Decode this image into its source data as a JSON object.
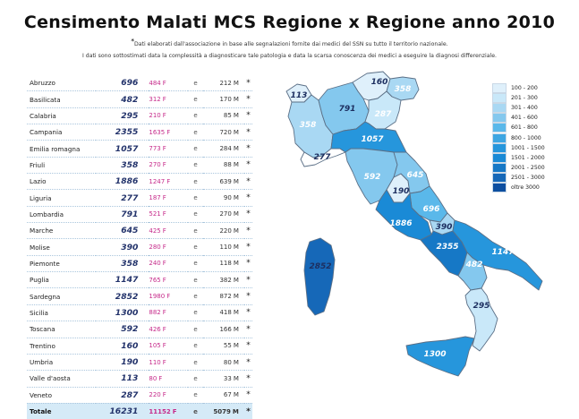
{
  "header": {
    "title": "Censimento Malati MCS Regione x Regione anno 2010",
    "note_star": "*",
    "note_line1": "Dati elaborati dall'associazione in base alle segnalazioni fornite dai medici del SSN su tutto il territorio nazionale.",
    "note_line2": "I dati sono sottostimati data la complessità a diagnosticare tale patologia e data la scarsa conoscenza dei medici a eseguire la diagnosi differenziale."
  },
  "table": {
    "rows": [
      {
        "region": "Abruzzo",
        "cases": "696",
        "female": "484",
        "f_unit": "F",
        "conj": "e",
        "male": "212",
        "m_unit": "M",
        "star": "*"
      },
      {
        "region": "Basilicata",
        "cases": "482",
        "female": "312",
        "f_unit": "F",
        "conj": "e",
        "male": "170",
        "m_unit": "M",
        "star": "*"
      },
      {
        "region": "Calabria",
        "cases": "295",
        "female": "210",
        "f_unit": "F",
        "conj": "e",
        "male": "85",
        "m_unit": "M",
        "star": "*"
      },
      {
        "region": "Campania",
        "cases": "2355",
        "female": "1635",
        "f_unit": "F",
        "conj": "e",
        "male": "720",
        "m_unit": "M",
        "star": "*"
      },
      {
        "region": "Emilia romagna",
        "cases": "1057",
        "female": "773",
        "f_unit": "F",
        "conj": "e",
        "male": "284",
        "m_unit": "M",
        "star": "*"
      },
      {
        "region": "Friuli",
        "cases": "358",
        "female": "270",
        "f_unit": "F",
        "conj": "e",
        "male": "88",
        "m_unit": "M",
        "star": "*"
      },
      {
        "region": "Lazio",
        "cases": "1886",
        "female": "1247",
        "f_unit": "F",
        "conj": "e",
        "male": "639",
        "m_unit": "M",
        "star": "*"
      },
      {
        "region": "Liguria",
        "cases": "277",
        "female": "187",
        "f_unit": "F",
        "conj": "e",
        "male": "90",
        "m_unit": "M",
        "star": "*"
      },
      {
        "region": "Lombardia",
        "cases": "791",
        "female": "521",
        "f_unit": "F",
        "conj": "e",
        "male": "270",
        "m_unit": "M",
        "star": "*"
      },
      {
        "region": "Marche",
        "cases": "645",
        "female": "425",
        "f_unit": "F",
        "conj": "e",
        "male": "220",
        "m_unit": "M",
        "star": "*"
      },
      {
        "region": "Molise",
        "cases": "390",
        "female": "280",
        "f_unit": "F",
        "conj": "e",
        "male": "110",
        "m_unit": "M",
        "star": "*"
      },
      {
        "region": "Piemonte",
        "cases": "358",
        "female": "240",
        "f_unit": "F",
        "conj": "e",
        "male": "118",
        "m_unit": "M",
        "star": "*"
      },
      {
        "region": "Puglia",
        "cases": "1147",
        "female": "765",
        "f_unit": "F",
        "conj": "e",
        "male": "382",
        "m_unit": "M",
        "star": "*"
      },
      {
        "region": "Sardegna",
        "cases": "2852",
        "female": "1980",
        "f_unit": "F",
        "conj": "e",
        "male": "872",
        "m_unit": "M",
        "star": "*"
      },
      {
        "region": "Sicilia",
        "cases": "1300",
        "female": "882",
        "f_unit": "F",
        "conj": "e",
        "male": "418",
        "m_unit": "M",
        "star": "*"
      },
      {
        "region": "Toscana",
        "cases": "592",
        "female": "426",
        "f_unit": "F",
        "conj": "e",
        "male": "166",
        "m_unit": "M",
        "star": "*"
      },
      {
        "region": "Trentino",
        "cases": "160",
        "female": "105",
        "f_unit": "F",
        "conj": "e",
        "male": "55",
        "m_unit": "M",
        "star": "*"
      },
      {
        "region": "Umbria",
        "cases": "190",
        "female": "110",
        "f_unit": "F",
        "conj": "e",
        "male": "80",
        "m_unit": "M",
        "star": "*"
      },
      {
        "region": "Valle d'aosta",
        "cases": "113",
        "female": "80",
        "f_unit": "F",
        "conj": "e",
        "male": "33",
        "m_unit": "M",
        "star": "*"
      },
      {
        "region": "Veneto",
        "cases": "287",
        "female": "220",
        "f_unit": "F",
        "conj": "e",
        "male": "67",
        "m_unit": "M",
        "star": "*"
      }
    ],
    "total": {
      "region": "Totale",
      "cases": "16231",
      "female": "11152",
      "f_unit": "F",
      "conj": "e",
      "male": "5079",
      "m_unit": "M",
      "star": "*"
    }
  },
  "map": {
    "labels": {
      "valle_aosta": "113",
      "piemonte": "358",
      "lombardia": "791",
      "trentino": "160",
      "friuli": "358",
      "veneto": "287",
      "liguria": "277",
      "emilia": "1057",
      "toscana": "592",
      "umbria": "190",
      "marche": "645",
      "abruzzo": "696",
      "lazio": "1886",
      "molise": "390",
      "campania": "2355",
      "puglia": "1147",
      "basilicata": "482",
      "calabria": "295",
      "sicilia": "1300",
      "sardegna": "2852"
    },
    "colors": {
      "very_light": "#dff0fb",
      "light": "#a9d8f3",
      "mid": "#3ea6e2",
      "darker": "#1a8ad6",
      "dark": "#1668b8",
      "darkest": "#0d4fa0",
      "outline": "#5b6f86"
    }
  },
  "legend": {
    "items": [
      {
        "label": "100 - 200",
        "color": "#dff0fb"
      },
      {
        "label": "201 - 300",
        "color": "#c9e8f9"
      },
      {
        "label": "301 - 400",
        "color": "#a9d8f3"
      },
      {
        "label": "401 - 600",
        "color": "#84c8ee"
      },
      {
        "label": "601 - 800",
        "color": "#5ab8ea"
      },
      {
        "label": "800 - 1000",
        "color": "#3ea6e2"
      },
      {
        "label": "1001 - 1500",
        "color": "#2696dc"
      },
      {
        "label": "1501 - 2000",
        "color": "#1a8ad6"
      },
      {
        "label": "2001 - 2500",
        "color": "#1678c6"
      },
      {
        "label": "2501 - 3000",
        "color": "#1668b8"
      },
      {
        "label": "oltre 3000",
        "color": "#0d4fa0"
      }
    ]
  }
}
